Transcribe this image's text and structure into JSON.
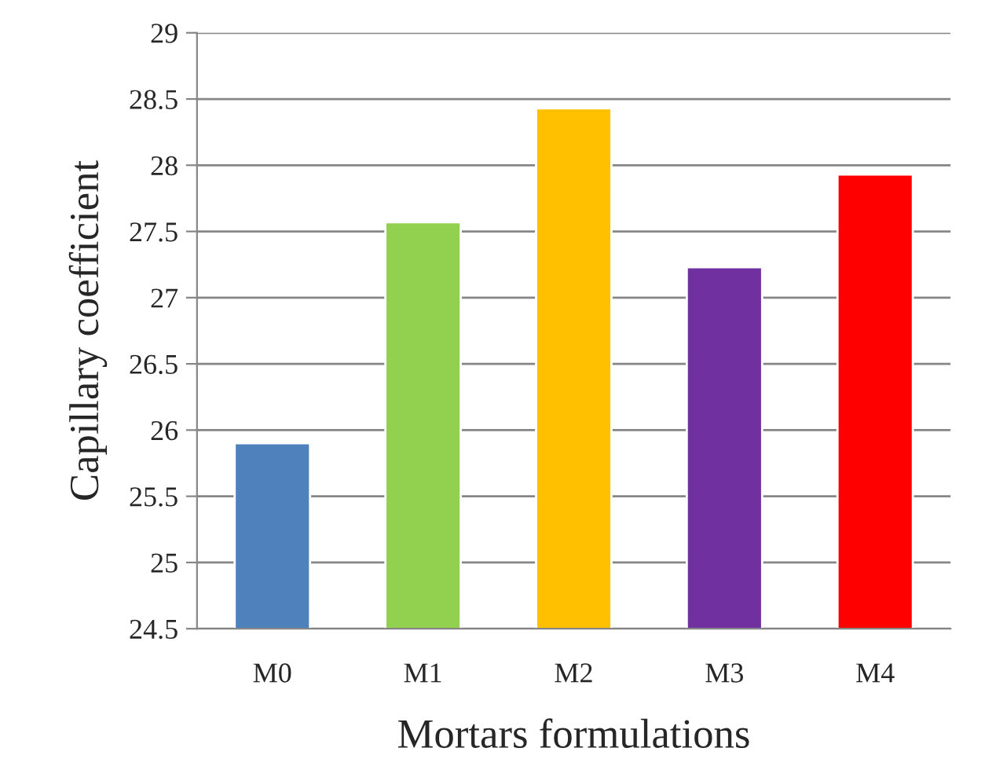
{
  "chart_data": {
    "type": "bar",
    "xlabel": "Mortars formulations",
    "ylabel": "Capillary coefficient",
    "categories": [
      "M0",
      "M1",
      "M2",
      "M3",
      "M4"
    ],
    "values": [
      25.9,
      27.57,
      28.43,
      27.23,
      27.93
    ],
    "colors": [
      "#4f81bd",
      "#92d050",
      "#ffc000",
      "#7030a0",
      "#ff0000"
    ],
    "ylim": [
      24.5,
      29
    ],
    "yticks": [
      24.5,
      25,
      25.5,
      26,
      26.5,
      27,
      27.5,
      28,
      28.5,
      29
    ],
    "grid": "y"
  }
}
